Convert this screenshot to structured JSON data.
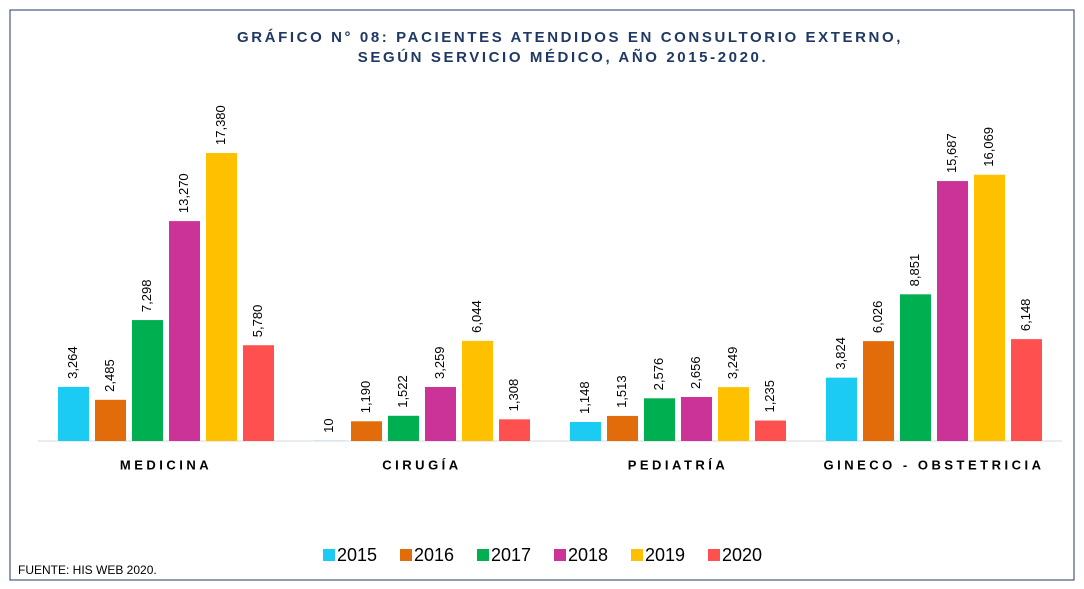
{
  "chart_data": {
    "type": "bar",
    "title": [
      "GRÁFICO N° 08: PACIENTES ATENDIDOS EN CONSULTORIO EXTERNO,",
      "SEGÚN SERVICIO MÉDICO, AÑO 2015-2020."
    ],
    "categories": [
      "MEDICINA",
      "CIRUGÍA",
      "PEDIATRÍA",
      "GINECO - OBSTETRICIA"
    ],
    "series": [
      {
        "name": "2015",
        "color": "#1ccbf4",
        "values": [
          3264,
          10,
          1148,
          3824
        ],
        "value_labels": [
          "3,264",
          "10",
          "1,148",
          "3,824"
        ]
      },
      {
        "name": "2016",
        "color": "#e36c0a",
        "values": [
          2485,
          1190,
          1513,
          6026
        ],
        "value_labels": [
          "2,485",
          "1,190",
          "1,513",
          "6,026"
        ]
      },
      {
        "name": "2017",
        "color": "#00b050",
        "values": [
          7298,
          1522,
          2576,
          8851
        ],
        "value_labels": [
          "7,298",
          "1,522",
          "2,576",
          "8,851"
        ]
      },
      {
        "name": "2018",
        "color": "#cc3399",
        "values": [
          13270,
          3259,
          2656,
          15687
        ],
        "value_labels": [
          "13,270",
          "3,259",
          "2,656",
          "15,687"
        ]
      },
      {
        "name": "2019",
        "color": "#ffc000",
        "values": [
          17380,
          6044,
          3249,
          16069
        ],
        "value_labels": [
          "17,380",
          "6,044",
          "3,249",
          "16,069"
        ]
      },
      {
        "name": "2020",
        "color": "#ff5050",
        "values": [
          5780,
          1308,
          1235,
          6148
        ],
        "value_labels": [
          "5,780",
          "1,308",
          "1,235",
          "6,148"
        ]
      }
    ],
    "source": "FUENTE: HIS WEB 2020."
  }
}
